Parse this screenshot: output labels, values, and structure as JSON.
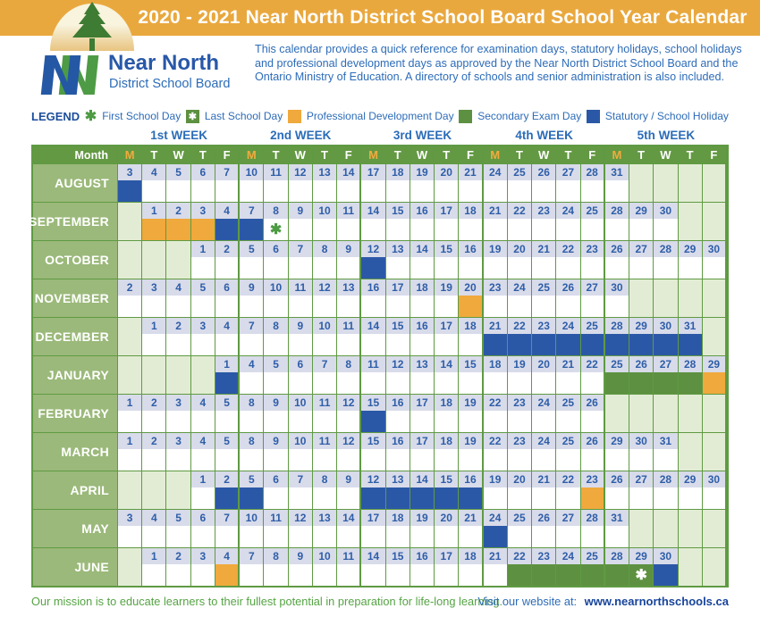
{
  "banner": {
    "title": "2020 - 2021 Near North District School Board School Year Calendar"
  },
  "logo": {
    "name": "Near North",
    "subtitle": "District School Board"
  },
  "description": "This calendar provides a quick reference for examination days, statutory holidays, school holidays and professional development days as approved by the Near North District School Board and the Ontario Ministry of Education. A directory of schools and senior administration is also included.",
  "legend": {
    "label": "LEGEND",
    "items": [
      {
        "style": "first",
        "label": "First School Day"
      },
      {
        "style": "last",
        "label": "Last School Day"
      },
      {
        "style": "pd",
        "label": "Professional Development Day"
      },
      {
        "style": "exam",
        "label": "Secondary Exam Day"
      },
      {
        "style": "holiday",
        "label": "Statutory / School Holiday"
      }
    ],
    "asterisk_glyph": "✱"
  },
  "colors": {
    "banner_orange": "#E9A83E",
    "holiday_blue": "#2B58A6",
    "pd_orange": "#F0A93C",
    "exam_green": "#5D9141",
    "grid_green": "#5F9A43",
    "header_green": "#639943",
    "month_cell_green": "#9BB97A",
    "empty_cell_green": "#E2ECD4",
    "number_bg_lavender": "#D8DBEA",
    "number_blue": "#2E5EA8",
    "text_blue": "#2D6CB8",
    "mission_green": "#55A344"
  },
  "calendar": {
    "week_labels": [
      "1st WEEK",
      "2nd WEEK",
      "3rd WEEK",
      "4th WEEK",
      "5th WEEK"
    ],
    "month_header": "Month",
    "day_letters": [
      "M",
      "T",
      "W",
      "T",
      "F"
    ],
    "months": [
      {
        "name": "AUGUST",
        "cells": [
          {
            "d": "3",
            "t": "H"
          },
          {
            "d": "4"
          },
          {
            "d": "5"
          },
          {
            "d": "6"
          },
          {
            "d": "7"
          },
          {
            "d": "10"
          },
          {
            "d": "11"
          },
          {
            "d": "12"
          },
          {
            "d": "13"
          },
          {
            "d": "14"
          },
          {
            "d": "17"
          },
          {
            "d": "18"
          },
          {
            "d": "19"
          },
          {
            "d": "20"
          },
          {
            "d": "21"
          },
          {
            "d": "24"
          },
          {
            "d": "25"
          },
          {
            "d": "26"
          },
          {
            "d": "27"
          },
          {
            "d": "28"
          },
          {
            "d": "31"
          },
          {
            "t": "E"
          },
          {
            "t": "E"
          },
          {
            "t": "E"
          },
          {
            "t": "E"
          }
        ]
      },
      {
        "name": "SEPTEMBER",
        "cells": [
          {
            "t": "E"
          },
          {
            "d": "1",
            "t": "P"
          },
          {
            "d": "2",
            "t": "P"
          },
          {
            "d": "3",
            "t": "P"
          },
          {
            "d": "4",
            "t": "H"
          },
          {
            "d": "7",
            "t": "H"
          },
          {
            "d": "8",
            "t": "F"
          },
          {
            "d": "9"
          },
          {
            "d": "10"
          },
          {
            "d": "11"
          },
          {
            "d": "14"
          },
          {
            "d": "15"
          },
          {
            "d": "16"
          },
          {
            "d": "17"
          },
          {
            "d": "18"
          },
          {
            "d": "21"
          },
          {
            "d": "22"
          },
          {
            "d": "23"
          },
          {
            "d": "24"
          },
          {
            "d": "25"
          },
          {
            "d": "28"
          },
          {
            "d": "29"
          },
          {
            "d": "30"
          },
          {
            "t": "E"
          },
          {
            "t": "E"
          }
        ]
      },
      {
        "name": "OCTOBER",
        "cells": [
          {
            "t": "E"
          },
          {
            "t": "E"
          },
          {
            "t": "E"
          },
          {
            "d": "1"
          },
          {
            "d": "2"
          },
          {
            "d": "5"
          },
          {
            "d": "6"
          },
          {
            "d": "7"
          },
          {
            "d": "8"
          },
          {
            "d": "9"
          },
          {
            "d": "12",
            "t": "H"
          },
          {
            "d": "13"
          },
          {
            "d": "14"
          },
          {
            "d": "15"
          },
          {
            "d": "16"
          },
          {
            "d": "19"
          },
          {
            "d": "20"
          },
          {
            "d": "21"
          },
          {
            "d": "22"
          },
          {
            "d": "23"
          },
          {
            "d": "26"
          },
          {
            "d": "27"
          },
          {
            "d": "28"
          },
          {
            "d": "29"
          },
          {
            "d": "30"
          }
        ]
      },
      {
        "name": "NOVEMBER",
        "cells": [
          {
            "d": "2"
          },
          {
            "d": "3"
          },
          {
            "d": "4"
          },
          {
            "d": "5"
          },
          {
            "d": "6"
          },
          {
            "d": "9"
          },
          {
            "d": "10"
          },
          {
            "d": "11"
          },
          {
            "d": "12"
          },
          {
            "d": "13"
          },
          {
            "d": "16"
          },
          {
            "d": "17"
          },
          {
            "d": "18"
          },
          {
            "d": "19"
          },
          {
            "d": "20",
            "t": "P"
          },
          {
            "d": "23"
          },
          {
            "d": "24"
          },
          {
            "d": "25"
          },
          {
            "d": "26"
          },
          {
            "d": "27"
          },
          {
            "d": "30"
          },
          {
            "t": "E"
          },
          {
            "t": "E"
          },
          {
            "t": "E"
          },
          {
            "t": "E"
          }
        ]
      },
      {
        "name": "DECEMBER",
        "cells": [
          {
            "t": "E"
          },
          {
            "d": "1"
          },
          {
            "d": "2"
          },
          {
            "d": "3"
          },
          {
            "d": "4"
          },
          {
            "d": "7"
          },
          {
            "d": "8"
          },
          {
            "d": "9"
          },
          {
            "d": "10"
          },
          {
            "d": "11"
          },
          {
            "d": "14"
          },
          {
            "d": "15"
          },
          {
            "d": "16"
          },
          {
            "d": "17"
          },
          {
            "d": "18"
          },
          {
            "d": "21",
            "t": "H"
          },
          {
            "d": "22",
            "t": "H"
          },
          {
            "d": "23",
            "t": "H"
          },
          {
            "d": "24",
            "t": "H"
          },
          {
            "d": "25",
            "t": "H"
          },
          {
            "d": "28",
            "t": "H"
          },
          {
            "d": "29",
            "t": "H"
          },
          {
            "d": "30",
            "t": "H"
          },
          {
            "d": "31",
            "t": "H"
          },
          {
            "t": "E"
          }
        ]
      },
      {
        "name": "JANUARY",
        "cells": [
          {
            "t": "E"
          },
          {
            "t": "E"
          },
          {
            "t": "E"
          },
          {
            "t": "E"
          },
          {
            "d": "1",
            "t": "H"
          },
          {
            "d": "4"
          },
          {
            "d": "5"
          },
          {
            "d": "6"
          },
          {
            "d": "7"
          },
          {
            "d": "8"
          },
          {
            "d": "11"
          },
          {
            "d": "12"
          },
          {
            "d": "13"
          },
          {
            "d": "14"
          },
          {
            "d": "15"
          },
          {
            "d": "18"
          },
          {
            "d": "19"
          },
          {
            "d": "20"
          },
          {
            "d": "21"
          },
          {
            "d": "22"
          },
          {
            "d": "25",
            "t": "X"
          },
          {
            "d": "26",
            "t": "X"
          },
          {
            "d": "27",
            "t": "X"
          },
          {
            "d": "28",
            "t": "X"
          },
          {
            "d": "29",
            "t": "P"
          }
        ]
      },
      {
        "name": "FEBRUARY",
        "cells": [
          {
            "d": "1"
          },
          {
            "d": "2"
          },
          {
            "d": "3"
          },
          {
            "d": "4"
          },
          {
            "d": "5"
          },
          {
            "d": "8"
          },
          {
            "d": "9"
          },
          {
            "d": "10"
          },
          {
            "d": "11"
          },
          {
            "d": "12"
          },
          {
            "d": "15",
            "t": "H"
          },
          {
            "d": "16"
          },
          {
            "d": "17"
          },
          {
            "d": "18"
          },
          {
            "d": "19"
          },
          {
            "d": "22"
          },
          {
            "d": "23"
          },
          {
            "d": "24"
          },
          {
            "d": "25"
          },
          {
            "d": "26"
          },
          {
            "t": "E"
          },
          {
            "t": "E"
          },
          {
            "t": "E"
          },
          {
            "t": "E"
          },
          {
            "t": "E"
          }
        ]
      },
      {
        "name": "MARCH",
        "cells": [
          {
            "d": "1"
          },
          {
            "d": "2"
          },
          {
            "d": "3"
          },
          {
            "d": "4"
          },
          {
            "d": "5"
          },
          {
            "d": "8"
          },
          {
            "d": "9"
          },
          {
            "d": "10"
          },
          {
            "d": "11"
          },
          {
            "d": "12"
          },
          {
            "d": "15"
          },
          {
            "d": "16"
          },
          {
            "d": "17"
          },
          {
            "d": "18"
          },
          {
            "d": "19"
          },
          {
            "d": "22"
          },
          {
            "d": "23"
          },
          {
            "d": "24"
          },
          {
            "d": "25"
          },
          {
            "d": "26"
          },
          {
            "d": "29"
          },
          {
            "d": "30"
          },
          {
            "d": "31"
          },
          {
            "t": "E"
          },
          {
            "t": "E"
          }
        ]
      },
      {
        "name": "APRIL",
        "cells": [
          {
            "t": "E"
          },
          {
            "t": "E"
          },
          {
            "t": "E"
          },
          {
            "d": "1"
          },
          {
            "d": "2",
            "t": "H"
          },
          {
            "d": "5",
            "t": "H"
          },
          {
            "d": "6"
          },
          {
            "d": "7"
          },
          {
            "d": "8"
          },
          {
            "d": "9"
          },
          {
            "d": "12",
            "t": "H"
          },
          {
            "d": "13",
            "t": "H"
          },
          {
            "d": "14",
            "t": "H"
          },
          {
            "d": "15",
            "t": "H"
          },
          {
            "d": "16",
            "t": "H"
          },
          {
            "d": "19"
          },
          {
            "d": "20"
          },
          {
            "d": "21"
          },
          {
            "d": "22"
          },
          {
            "d": "23",
            "t": "P"
          },
          {
            "d": "26"
          },
          {
            "d": "27"
          },
          {
            "d": "28"
          },
          {
            "d": "29"
          },
          {
            "d": "30"
          }
        ]
      },
      {
        "name": "MAY",
        "cells": [
          {
            "d": "3"
          },
          {
            "d": "4"
          },
          {
            "d": "5"
          },
          {
            "d": "6"
          },
          {
            "d": "7"
          },
          {
            "d": "10"
          },
          {
            "d": "11"
          },
          {
            "d": "12"
          },
          {
            "d": "13"
          },
          {
            "d": "14"
          },
          {
            "d": "17"
          },
          {
            "d": "18"
          },
          {
            "d": "19"
          },
          {
            "d": "20"
          },
          {
            "d": "21"
          },
          {
            "d": "24",
            "t": "H"
          },
          {
            "d": "25"
          },
          {
            "d": "26"
          },
          {
            "d": "27"
          },
          {
            "d": "28"
          },
          {
            "d": "31"
          },
          {
            "t": "E"
          },
          {
            "t": "E"
          },
          {
            "t": "E"
          },
          {
            "t": "E"
          }
        ]
      },
      {
        "name": "JUNE",
        "cells": [
          {
            "t": "E"
          },
          {
            "d": "1"
          },
          {
            "d": "2"
          },
          {
            "d": "3"
          },
          {
            "d": "4",
            "t": "P"
          },
          {
            "d": "7"
          },
          {
            "d": "8"
          },
          {
            "d": "9"
          },
          {
            "d": "10"
          },
          {
            "d": "11"
          },
          {
            "d": "14"
          },
          {
            "d": "15"
          },
          {
            "d": "16"
          },
          {
            "d": "17"
          },
          {
            "d": "18"
          },
          {
            "d": "21"
          },
          {
            "d": "22",
            "t": "X"
          },
          {
            "d": "23",
            "t": "X"
          },
          {
            "d": "24",
            "t": "X"
          },
          {
            "d": "25",
            "t": "X"
          },
          {
            "d": "28",
            "t": "X"
          },
          {
            "d": "29",
            "t": "L"
          },
          {
            "d": "30",
            "t": "H"
          },
          {
            "t": "E"
          },
          {
            "t": "E"
          }
        ]
      }
    ]
  },
  "footer": {
    "mission": "Our mission is to educate learners to their fullest potential in preparation for life-long learning.",
    "website_label": "Visit our website at:",
    "website_url": "www.nearnorthschools.ca"
  }
}
